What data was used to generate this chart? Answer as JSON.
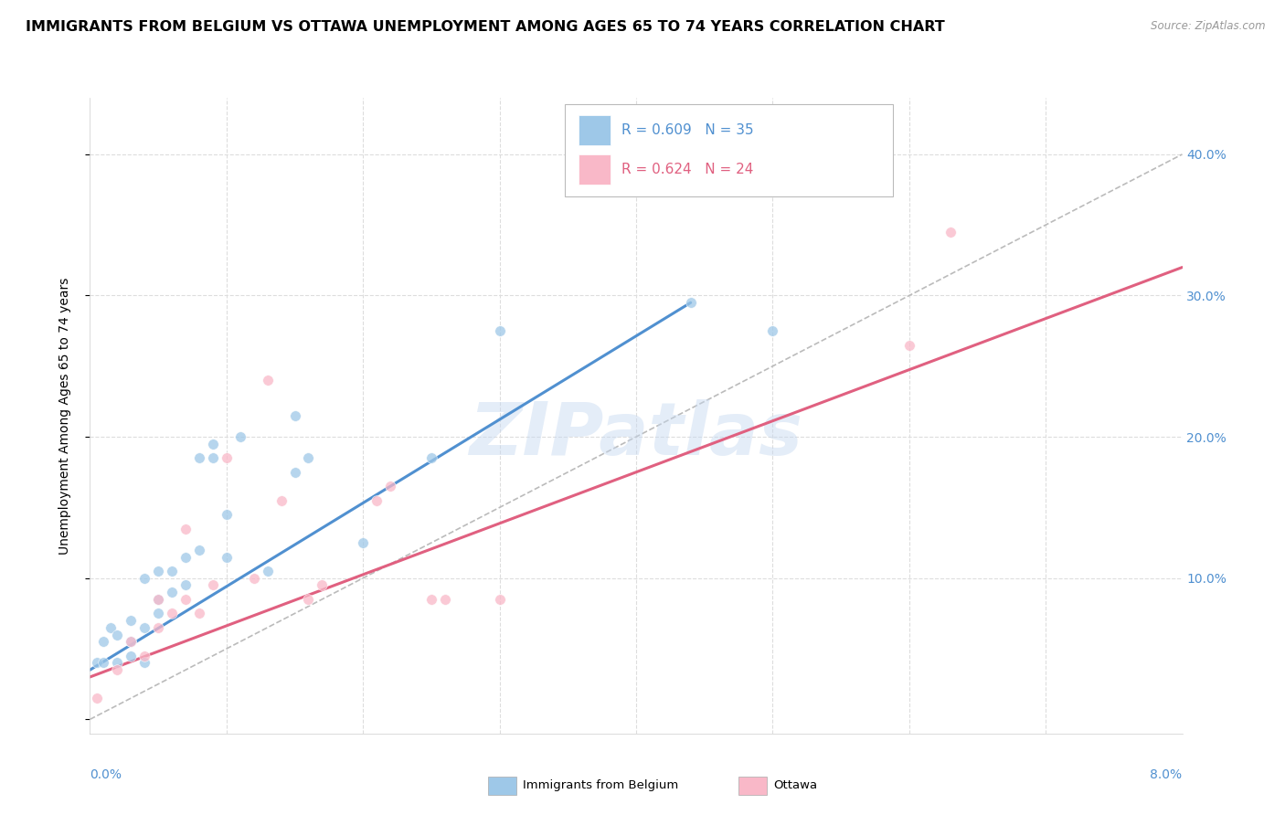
{
  "title": "IMMIGRANTS FROM BELGIUM VS OTTAWA UNEMPLOYMENT AMONG AGES 65 TO 74 YEARS CORRELATION CHART",
  "source": "Source: ZipAtlas.com",
  "ylabel": "Unemployment Among Ages 65 to 74 years",
  "xlim": [
    0.0,
    0.08
  ],
  "ylim": [
    -0.01,
    0.44
  ],
  "watermark": "ZIPatlas",
  "blue_scatter_x": [
    0.0005,
    0.001,
    0.001,
    0.0015,
    0.002,
    0.002,
    0.003,
    0.003,
    0.003,
    0.004,
    0.004,
    0.004,
    0.005,
    0.005,
    0.005,
    0.006,
    0.006,
    0.007,
    0.007,
    0.008,
    0.008,
    0.009,
    0.009,
    0.01,
    0.01,
    0.011,
    0.013,
    0.015,
    0.015,
    0.016,
    0.02,
    0.025,
    0.03,
    0.044,
    0.05
  ],
  "blue_scatter_y": [
    0.04,
    0.04,
    0.055,
    0.065,
    0.04,
    0.06,
    0.045,
    0.055,
    0.07,
    0.04,
    0.065,
    0.1,
    0.075,
    0.085,
    0.105,
    0.09,
    0.105,
    0.095,
    0.115,
    0.12,
    0.185,
    0.185,
    0.195,
    0.115,
    0.145,
    0.2,
    0.105,
    0.175,
    0.215,
    0.185,
    0.125,
    0.185,
    0.275,
    0.295,
    0.275
  ],
  "pink_scatter_x": [
    0.0005,
    0.002,
    0.003,
    0.004,
    0.005,
    0.005,
    0.006,
    0.007,
    0.007,
    0.008,
    0.009,
    0.01,
    0.012,
    0.013,
    0.014,
    0.016,
    0.017,
    0.021,
    0.022,
    0.025,
    0.026,
    0.03,
    0.06,
    0.063
  ],
  "pink_scatter_y": [
    0.015,
    0.035,
    0.055,
    0.045,
    0.065,
    0.085,
    0.075,
    0.085,
    0.135,
    0.075,
    0.095,
    0.185,
    0.1,
    0.24,
    0.155,
    0.085,
    0.095,
    0.155,
    0.165,
    0.085,
    0.085,
    0.085,
    0.265,
    0.345
  ],
  "blue_line_x": [
    0.0,
    0.044
  ],
  "blue_line_y": [
    0.035,
    0.295
  ],
  "pink_line_x": [
    0.0,
    0.08
  ],
  "pink_line_y": [
    0.03,
    0.32
  ],
  "diag_line_x": [
    0.0,
    0.08
  ],
  "diag_line_y": [
    0.0,
    0.4
  ],
  "blue_color": "#9ec8e8",
  "pink_color": "#f9b8c8",
  "blue_line_color": "#5090d0",
  "pink_line_color": "#e06080",
  "diag_line_color": "#bbbbbb",
  "grid_color": "#dddddd",
  "right_tick_color": "#5090d0",
  "scatter_size": 70,
  "scatter_alpha": 0.75,
  "title_fontsize": 11.5,
  "axis_fontsize": 10,
  "tick_fontsize": 10,
  "yticks": [
    0.0,
    0.1,
    0.2,
    0.3,
    0.4
  ],
  "xticks": [
    0.0,
    0.01,
    0.02,
    0.03,
    0.04,
    0.05,
    0.06,
    0.07,
    0.08
  ]
}
